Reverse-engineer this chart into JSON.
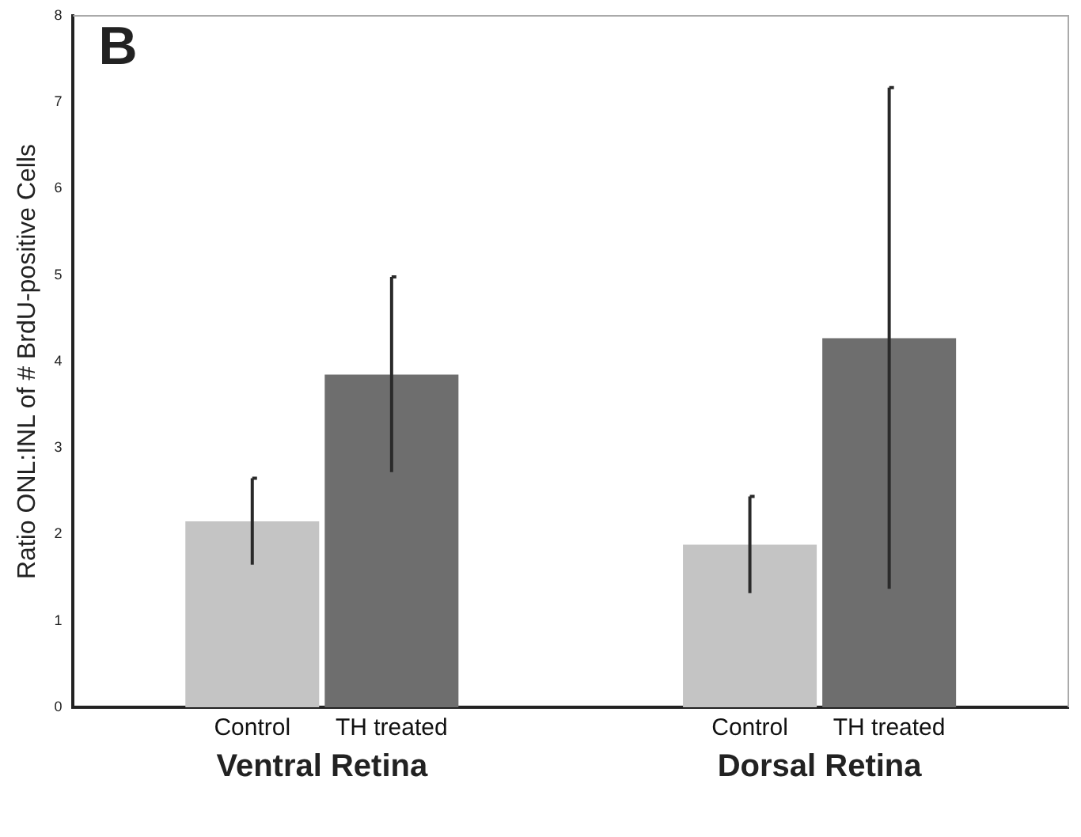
{
  "chart_data": {
    "type": "bar",
    "ylabel": "Ratio ONL:INL of # BrdU-positive Cells",
    "categories": [
      "Ventral Retina",
      "Dorsal Retina"
    ],
    "series": [
      {
        "name": "Control",
        "color": "#c4c4c4",
        "values": [
          2.15,
          1.88
        ],
        "errors": [
          0.5,
          0.56
        ]
      },
      {
        "name": "TH treated",
        "color": "#6e6e6e",
        "values": [
          3.85,
          4.27
        ],
        "errors": [
          1.13,
          2.9
        ]
      }
    ],
    "ylim": [
      0,
      8
    ],
    "yticks": [
      0,
      1,
      2,
      3,
      4,
      5,
      6,
      7,
      8
    ],
    "grid": false,
    "legend": false,
    "annotations": [
      "B"
    ]
  }
}
